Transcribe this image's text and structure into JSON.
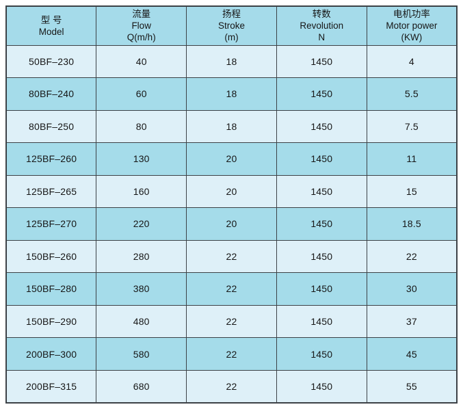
{
  "colors": {
    "page_bg": "#ffffff",
    "header_bg": "#a5dbea",
    "row_dark_bg": "#a5dcea",
    "row_light_bg": "#def0f8",
    "border": "#3c4146",
    "text": "#161616"
  },
  "table": {
    "headers": [
      {
        "zh": "型 号",
        "en": "Model"
      },
      {
        "zh": "流量",
        "en": "Flow",
        "unit": "Q(m/h)"
      },
      {
        "zh": "扬程",
        "en": "Stroke",
        "unit": "(m)"
      },
      {
        "zh": "转数",
        "en": "Revolution",
        "unit": "N"
      },
      {
        "zh": "电机功率",
        "en": "Motor power",
        "unit": "(KW)"
      }
    ],
    "rows": [
      [
        "50BF–230",
        "40",
        "18",
        "1450",
        "4"
      ],
      [
        "80BF–240",
        "60",
        "18",
        "1450",
        "5.5"
      ],
      [
        "80BF–250",
        "80",
        "18",
        "1450",
        "7.5"
      ],
      [
        "125BF–260",
        "130",
        "20",
        "1450",
        "11"
      ],
      [
        "125BF–265",
        "160",
        "20",
        "1450",
        "15"
      ],
      [
        "125BF–270",
        "220",
        "20",
        "1450",
        "18.5"
      ],
      [
        "150BF–260",
        "280",
        "22",
        "1450",
        "22"
      ],
      [
        "150BF–280",
        "380",
        "22",
        "1450",
        "30"
      ],
      [
        "150BF–290",
        "480",
        "22",
        "1450",
        "37"
      ],
      [
        "200BF–300",
        "580",
        "22",
        "1450",
        "45"
      ],
      [
        "200BF–315",
        "680",
        "22",
        "1450",
        "55"
      ]
    ]
  }
}
